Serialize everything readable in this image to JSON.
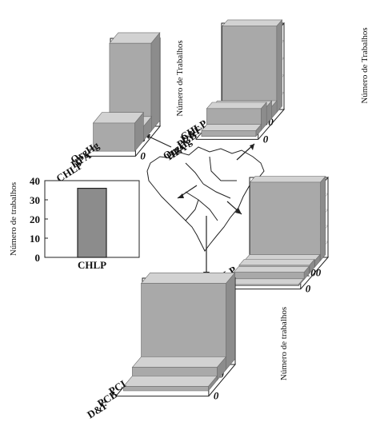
{
  "chart_data": [
    {
      "type": "bar",
      "categories": [
        "OrgHg",
        "HPA",
        "CHLP"
      ],
      "values": [
        26,
        4,
        8
      ],
      "ylabel": "Número de Trabalhos",
      "ylim": [
        0,
        25
      ],
      "yticks": [
        "0",
        "5",
        "10",
        "15",
        "20",
        "25"
      ],
      "grid": true
    },
    {
      "type": "bar",
      "categories": [
        "CHLP",
        "D&F",
        "PCB",
        "OrgHg",
        "HPA"
      ],
      "values": [
        150,
        20,
        30,
        38,
        10
      ],
      "ylabel": "Número de Trabalhos",
      "ylim": [
        0,
        150
      ],
      "yticks": [
        "0",
        "30",
        "60",
        "90",
        "120",
        "150"
      ],
      "grid": true
    },
    {
      "type": "bar",
      "categories": [
        "CHLP"
      ],
      "values": [
        36
      ],
      "ylabel": "Número de trabalhos",
      "ylim": [
        0,
        40
      ],
      "yticks": [
        "0",
        "10",
        "20",
        "30",
        "40"
      ],
      "grid": false
    },
    {
      "type": "bar",
      "categories": [
        "CHLP",
        "D&F",
        "PCB",
        "HPA",
        "OrgHg"
      ],
      "values": [
        490,
        40,
        50,
        45,
        8
      ],
      "ylabel": "",
      "ylim": [
        0,
        500
      ],
      "yticks": [
        "0",
        "100",
        "200",
        "300",
        "400",
        "500"
      ],
      "grid": true
    },
    {
      "type": "bar",
      "categories": [
        "PCI",
        "PCB",
        "D&F"
      ],
      "values": [
        45,
        6,
        2
      ],
      "ylabel": "Número de trabalhos",
      "ylim": [
        0,
        40
      ],
      "yticks": [
        "0",
        "10",
        "20",
        "30",
        "40"
      ],
      "grid": true
    }
  ]
}
